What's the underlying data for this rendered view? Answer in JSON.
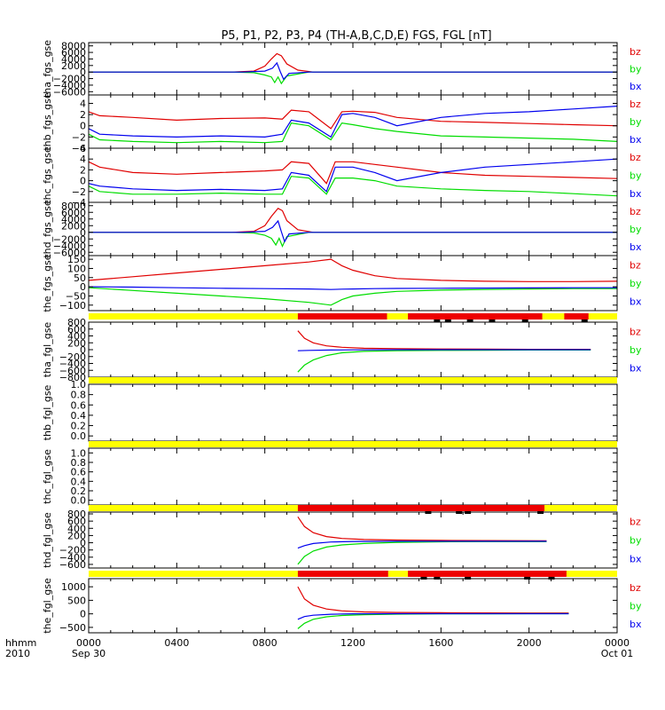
{
  "title": "P5, P1, P2, P3, P4 (TH-A,B,C,D,E) FGS, FGL [nT]",
  "colors": {
    "bz": "#e00000",
    "by": "#00dd00",
    "bx": "#0000ee",
    "bar_yellow": "#ffff00",
    "bar_red": "#ee0000",
    "axis": "#000000"
  },
  "x_axis": {
    "unit_label": "hhmm",
    "year_label": "2010",
    "range_hours": [
      0,
      24
    ],
    "ticks": [
      {
        "hour": 0,
        "label": "0000",
        "sub": "Sep 30"
      },
      {
        "hour": 4,
        "label": "0400",
        "sub": ""
      },
      {
        "hour": 8,
        "label": "0800",
        "sub": ""
      },
      {
        "hour": 12,
        "label": "1200",
        "sub": ""
      },
      {
        "hour": 16,
        "label": "1600",
        "sub": ""
      },
      {
        "hour": 20,
        "label": "2000",
        "sub": ""
      },
      {
        "hour": 24,
        "label": "0000",
        "sub": "Oct 01"
      }
    ]
  },
  "chart_data": [
    {
      "type": "line",
      "ylabel": "tha_fgs_gse",
      "ylim": [
        -7000,
        9000
      ],
      "ytick_labels": [
        "8000",
        "6000",
        "4000",
        "2000",
        "0",
        "−2000",
        "−4000",
        "−6000"
      ],
      "ytick_values": [
        8000,
        6000,
        4000,
        2000,
        0,
        -2000,
        -4000,
        -6000
      ],
      "legend": [
        "bz",
        "by",
        "bx"
      ],
      "series": [
        {
          "name": "bz",
          "x": [
            0,
            6.5,
            7.5,
            8.0,
            8.3,
            8.55,
            8.75,
            9.0,
            9.5,
            10.2,
            24
          ],
          "y": [
            0,
            0,
            300,
            1800,
            4000,
            5600,
            5000,
            2500,
            600,
            0,
            0
          ]
        },
        {
          "name": "by",
          "x": [
            0,
            6.5,
            7.5,
            8.0,
            8.3,
            8.45,
            8.6,
            8.75,
            9.0,
            10,
            24
          ],
          "y": [
            0,
            0,
            -200,
            -900,
            -1500,
            -3200,
            -1500,
            -3500,
            -1200,
            0,
            0
          ]
        },
        {
          "name": "bx",
          "x": [
            0,
            7.0,
            8.0,
            8.35,
            8.55,
            8.7,
            8.85,
            9.1,
            10,
            24
          ],
          "y": [
            0,
            0,
            300,
            1200,
            2800,
            200,
            -2200,
            -400,
            0,
            0
          ]
        }
      ]
    },
    {
      "type": "line",
      "ylabel": "thb_fgs_gse",
      "ylim": [
        -4,
        5.5
      ],
      "ytick_labels": [
        "4",
        "2",
        "0",
        "−2",
        "−4"
      ],
      "ytick_values": [
        4,
        2,
        0,
        -2,
        -4
      ],
      "legend": [
        "bz",
        "by",
        "bx"
      ],
      "series": [
        {
          "name": "bz",
          "x": [
            0,
            0.5,
            2,
            4,
            6,
            8,
            8.8,
            9.2,
            10,
            11,
            11.5,
            12,
            13,
            14,
            16,
            18,
            20,
            22,
            24
          ],
          "y": [
            2.5,
            1.8,
            1.5,
            1.0,
            1.3,
            1.4,
            1.2,
            2.8,
            2.5,
            -0.5,
            2.5,
            2.6,
            2.4,
            1.5,
            0.8,
            0.6,
            0.4,
            0.2,
            0
          ]
        },
        {
          "name": "by",
          "x": [
            0,
            0.5,
            2,
            4,
            6,
            8,
            8.8,
            9.2,
            10,
            11,
            11.5,
            12,
            13,
            14,
            16,
            18,
            20,
            22,
            24
          ],
          "y": [
            -1.5,
            -2.5,
            -2.8,
            -3.0,
            -2.8,
            -3.0,
            -2.8,
            0.5,
            0,
            -2.5,
            0.5,
            0.2,
            -0.5,
            -1.0,
            -1.8,
            -2.0,
            -2.2,
            -2.4,
            -2.8
          ]
        },
        {
          "name": "bx",
          "x": [
            0,
            0.5,
            2,
            4,
            6,
            8,
            8.8,
            9.2,
            10,
            11,
            11.5,
            12,
            13,
            14,
            16,
            18,
            20,
            22,
            24
          ],
          "y": [
            -0.5,
            -1.5,
            -1.8,
            -2.0,
            -1.8,
            -2.0,
            -1.5,
            1.0,
            0.5,
            -2.0,
            2.0,
            2.2,
            1.5,
            0,
            1.5,
            2.2,
            2.5,
            3.0,
            3.5
          ]
        }
      ]
    },
    {
      "type": "line",
      "ylabel": "thc_fgs_gse",
      "ylim": [
        -4,
        6
      ],
      "ytick_labels": [
        "6",
        "4",
        "2",
        "0",
        "−2",
        "−4"
      ],
      "ytick_values": [
        6,
        4,
        2,
        0,
        -2,
        -4
      ],
      "legend": [
        "bz",
        "by",
        "bx"
      ],
      "series": [
        {
          "name": "bz",
          "x": [
            0,
            0.5,
            2,
            4,
            6,
            8,
            8.8,
            9.2,
            10,
            10.8,
            11.2,
            12,
            13,
            14,
            16,
            18,
            20,
            22,
            24
          ],
          "y": [
            3.5,
            2.5,
            1.5,
            1.2,
            1.5,
            1.8,
            2.0,
            3.5,
            3.2,
            -0.5,
            3.5,
            3.5,
            3.0,
            2.5,
            1.5,
            1.0,
            0.8,
            0.6,
            0.4
          ]
        },
        {
          "name": "by",
          "x": [
            0,
            0.5,
            2,
            4,
            6,
            8,
            8.8,
            9.2,
            10,
            10.8,
            11.2,
            12,
            13,
            14,
            16,
            18,
            20,
            22,
            24
          ],
          "y": [
            -1.0,
            -2.0,
            -2.5,
            -2.5,
            -2.3,
            -2.5,
            -2.5,
            0.8,
            0.5,
            -2.5,
            0.5,
            0.5,
            0,
            -1.0,
            -1.5,
            -1.8,
            -2.0,
            -2.4,
            -2.8
          ]
        },
        {
          "name": "bx",
          "x": [
            0,
            0.5,
            2,
            4,
            6,
            8,
            8.8,
            9.2,
            10,
            10.8,
            11.2,
            12,
            13,
            14,
            16,
            18,
            20,
            22,
            24
          ],
          "y": [
            -0.5,
            -1.0,
            -1.5,
            -1.8,
            -1.6,
            -1.8,
            -1.5,
            1.5,
            1.0,
            -2.0,
            2.5,
            2.5,
            1.5,
            0,
            1.5,
            2.5,
            3.0,
            3.5,
            4.0
          ]
        }
      ]
    },
    {
      "type": "line",
      "ylabel": "thd_fgs_gse",
      "ylim": [
        -7000,
        9000
      ],
      "ytick_labels": [
        "8000",
        "6000",
        "4000",
        "2000",
        "0",
        "−2000",
        "−4000",
        "−6000"
      ],
      "ytick_values": [
        8000,
        6000,
        4000,
        2000,
        0,
        -2000,
        -4000,
        -6000
      ],
      "legend": [
        "bz",
        "by",
        "bx"
      ],
      "series": [
        {
          "name": "bz",
          "x": [
            0,
            6.5,
            7.5,
            8.0,
            8.3,
            8.6,
            8.8,
            9.0,
            9.5,
            10.2,
            24
          ],
          "y": [
            0,
            0,
            300,
            2000,
            4800,
            7200,
            6500,
            3500,
            800,
            0,
            0
          ]
        },
        {
          "name": "by",
          "x": [
            0,
            6.5,
            7.5,
            8.0,
            8.3,
            8.5,
            8.65,
            8.8,
            9.0,
            10,
            24
          ],
          "y": [
            0,
            0,
            -200,
            -900,
            -1800,
            -3800,
            -1800,
            -4200,
            -1300,
            0,
            0
          ]
        },
        {
          "name": "bx",
          "x": [
            0,
            7.0,
            8.0,
            8.35,
            8.6,
            8.75,
            8.9,
            9.1,
            10,
            24
          ],
          "y": [
            0,
            0,
            300,
            1500,
            3400,
            200,
            -2800,
            -500,
            0,
            0
          ]
        }
      ]
    },
    {
      "type": "line",
      "ylabel": "the_fgs_gse",
      "ylim": [
        -130,
        170
      ],
      "ytick_labels": [
        "150",
        "100",
        "50",
        "0",
        "−50",
        "−100"
      ],
      "ytick_values": [
        150,
        100,
        50,
        0,
        -50,
        -100
      ],
      "legend": [
        "bz",
        "by",
        "bx"
      ],
      "series": [
        {
          "name": "bz",
          "x": [
            0,
            2,
            4,
            6,
            8,
            10,
            11.0,
            11.5,
            12,
            13,
            14,
            16,
            18,
            20,
            22,
            24
          ],
          "y": [
            35,
            55,
            75,
            95,
            115,
            135,
            150,
            115,
            90,
            60,
            45,
            35,
            30,
            28,
            28,
            30
          ]
        },
        {
          "name": "by",
          "x": [
            0,
            2,
            4,
            6,
            8,
            10,
            11.0,
            11.5,
            12,
            13,
            14,
            16,
            18,
            20,
            22,
            24
          ],
          "y": [
            -5,
            -20,
            -35,
            -50,
            -65,
            -85,
            -100,
            -70,
            -50,
            -35,
            -25,
            -18,
            -15,
            -12,
            -10,
            -10
          ]
        },
        {
          "name": "bx",
          "x": [
            0,
            2,
            4,
            6,
            8,
            10,
            11.0,
            11.5,
            12,
            13,
            14,
            16,
            18,
            20,
            22,
            24
          ],
          "y": [
            0,
            -2,
            -5,
            -8,
            -10,
            -12,
            -15,
            -13,
            -12,
            -10,
            -9,
            -8,
            -7,
            -6,
            -5,
            -5
          ]
        }
      ]
    },
    {
      "type": "line",
      "ylabel": "tha_fgl_gse",
      "ylim": [
        -800,
        800
      ],
      "ytick_labels": [
        "800",
        "600",
        "400",
        "200",
        "0",
        "−200",
        "−400",
        "−600",
        "−800"
      ],
      "ytick_values": [
        800,
        600,
        400,
        200,
        0,
        -200,
        -400,
        -600,
        -800
      ],
      "legend": [
        "bz",
        "by",
        "bx"
      ],
      "series": [
        {
          "name": "bz",
          "x": [
            9.5,
            9.8,
            10.2,
            10.8,
            11.5,
            12.5,
            14,
            16,
            18,
            20,
            22.8
          ],
          "y": [
            550,
            330,
            200,
            110,
            70,
            40,
            30,
            20,
            15,
            10,
            10
          ]
        },
        {
          "name": "by",
          "x": [
            9.5,
            9.8,
            10.2,
            10.8,
            11.5,
            12.5,
            14,
            16,
            18,
            20,
            22.8
          ],
          "y": [
            -650,
            -450,
            -300,
            -170,
            -90,
            -50,
            -30,
            -20,
            -15,
            -10,
            -10
          ]
        },
        {
          "name": "bx",
          "x": [
            9.5,
            10,
            11,
            12,
            14,
            16,
            18,
            20,
            22.8
          ],
          "y": [
            -30,
            -20,
            -10,
            -5,
            0,
            0,
            0,
            0,
            0
          ]
        }
      ]
    },
    {
      "type": "line",
      "ylabel": "thb_fgl_gse",
      "ylim": [
        -0.1,
        1.0
      ],
      "ytick_labels": [
        "1.0",
        "0.8",
        "0.6",
        "0.4",
        "0.2",
        "0.0"
      ],
      "ytick_values": [
        1.0,
        0.8,
        0.6,
        0.4,
        0.2,
        0.0
      ],
      "legend": [],
      "series": []
    },
    {
      "type": "line",
      "ylabel": "thc_fgl_gse",
      "ylim": [
        -0.1,
        1.1
      ],
      "ytick_labels": [
        "1.0",
        "0.8",
        "0.6",
        "0.4",
        "0.2",
        "0.0"
      ],
      "ytick_values": [
        1.0,
        0.8,
        0.6,
        0.4,
        0.2,
        0.0
      ],
      "legend": [],
      "series": []
    },
    {
      "type": "line",
      "ylabel": "thd_fgl_gse",
      "ylim": [
        -700,
        850
      ],
      "ytick_labels": [
        "800",
        "600",
        "400",
        "200",
        "0",
        "−200",
        "−400",
        "−600"
      ],
      "ytick_values": [
        800,
        600,
        400,
        200,
        0,
        -200,
        -400,
        -600
      ],
      "legend": [
        "bz",
        "by",
        "bx"
      ],
      "series": [
        {
          "name": "bz",
          "x": [
            9.5,
            9.8,
            10.2,
            10.8,
            11.5,
            12.5,
            14,
            16,
            18,
            20.8
          ],
          "y": [
            720,
            450,
            280,
            170,
            120,
            90,
            75,
            65,
            60,
            55
          ]
        },
        {
          "name": "by",
          "x": [
            9.5,
            9.8,
            10.2,
            10.8,
            11.5,
            12.5,
            14,
            16,
            18,
            20.8
          ],
          "y": [
            -600,
            -380,
            -230,
            -120,
            -60,
            -20,
            10,
            25,
            30,
            30
          ]
        },
        {
          "name": "bx",
          "x": [
            9.5,
            9.8,
            10.2,
            11,
            12,
            14,
            16,
            18,
            20.8
          ],
          "y": [
            -150,
            -80,
            -20,
            20,
            35,
            40,
            40,
            40,
            40
          ]
        }
      ]
    },
    {
      "type": "line",
      "ylabel": "the_fgl_gse",
      "ylim": [
        -700,
        1300
      ],
      "ytick_labels": [
        "1000",
        "500",
        "0",
        "−500"
      ],
      "ytick_values": [
        1000,
        500,
        0,
        -500
      ],
      "legend": [
        "bz",
        "by",
        "bx"
      ],
      "series": [
        {
          "name": "bz",
          "x": [
            9.5,
            9.8,
            10.2,
            10.8,
            11.5,
            12.5,
            14,
            16,
            18,
            20,
            21.8
          ],
          "y": [
            1000,
            550,
            320,
            180,
            110,
            70,
            50,
            40,
            35,
            30,
            30
          ]
        },
        {
          "name": "by",
          "x": [
            9.5,
            9.8,
            10.2,
            10.8,
            11.5,
            12.5,
            14,
            16,
            18,
            20,
            21.8
          ],
          "y": [
            -550,
            -350,
            -200,
            -110,
            -60,
            -30,
            -10,
            0,
            0,
            5,
            5
          ]
        },
        {
          "name": "bx",
          "x": [
            9.5,
            9.8,
            10.2,
            11,
            12,
            14,
            16,
            18,
            21.8
          ],
          "y": [
            -200,
            -100,
            -50,
            -15,
            0,
            5,
            5,
            5,
            5
          ]
        }
      ]
    }
  ],
  "bars": [
    {
      "after_panel": 4,
      "red": [
        [
          9.5,
          13.55
        ],
        [
          14.5,
          20.6
        ],
        [
          21.6,
          22.7
        ]
      ],
      "ticks": [
        15.8,
        16.3,
        17.3,
        18.3,
        19.8,
        22.5
      ]
    },
    {
      "after_panel": 5,
      "red": [],
      "ticks": []
    },
    {
      "after_panel": 6,
      "red": [],
      "ticks": []
    },
    {
      "after_panel": 7,
      "red": [
        [
          9.5,
          20.7
        ]
      ],
      "ticks": [
        15.4,
        16.8,
        17.2,
        20.5
      ]
    },
    {
      "after_panel": 8,
      "red": [
        [
          9.5,
          13.6
        ],
        [
          14.5,
          21.7
        ]
      ],
      "ticks": [
        15.2,
        15.8,
        17.2,
        19.9,
        21.0
      ]
    }
  ]
}
